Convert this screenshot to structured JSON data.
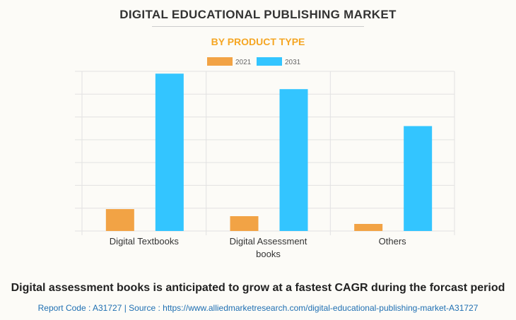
{
  "title": "DIGITAL EDUCATIONAL PUBLISHING MARKET",
  "subtitle": "BY PRODUCT TYPE",
  "caption": "Digital assessment books is anticipated to grow at a fastest CAGR during the forcast period",
  "source": "Report Code : A31727  |  Source : https://www.alliedmarketresearch.com/digital-educational-publishing-market-A31727",
  "colors": {
    "2021": "#f2a345",
    "2031": "#33c5ff"
  },
  "chart_data": {
    "type": "bar",
    "title": "DIGITAL EDUCATIONAL PUBLISHING MARKET",
    "subtitle": "BY PRODUCT TYPE",
    "categories": [
      [
        "Digital Textbooks"
      ],
      [
        "Digital Assessment",
        "books"
      ],
      [
        "Others"
      ]
    ],
    "series": [
      {
        "name": "2021",
        "values": [
          0.96,
          0.65,
          0.31
        ]
      },
      {
        "name": "2031",
        "values": [
          6.9,
          6.22,
          4.6
        ]
      }
    ],
    "ylim": [
      0,
      7
    ],
    "yticks_labeled": false,
    "grid": true,
    "legend": "top-center",
    "xlabel": "",
    "ylabel": ""
  }
}
